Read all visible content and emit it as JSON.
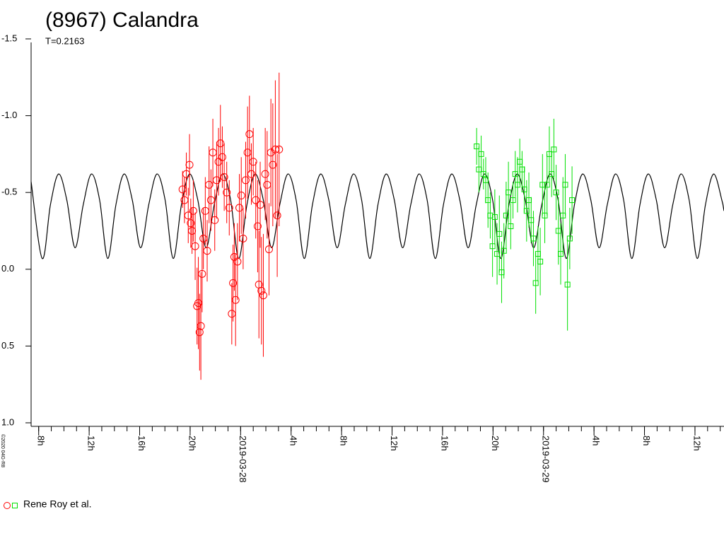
{
  "chart_data": {
    "type": "scatter",
    "title": "(8967) Calandra",
    "subtitle": "T=0.2163",
    "credit": "©2020 04G-R8",
    "legend": "Rene Roy et al.",
    "xlim": [
      7.4,
      62.3
    ],
    "ylim": [
      1.0,
      -1.5
    ],
    "yticks": [
      {
        "value": 1.0,
        "label": "1.0"
      },
      0.5,
      {
        "value": 0.0,
        "label": "0.0"
      },
      -0.5,
      {
        "value": -1.0,
        "label": "-1.0"
      },
      -1.5
    ],
    "xticks": [
      {
        "value": 8,
        "label": "8h"
      },
      {
        "value": 12,
        "label": "12h"
      },
      {
        "value": 16,
        "label": "16h"
      },
      {
        "value": 20,
        "label": "20h"
      },
      {
        "value": 24,
        "label": "2019-03-28"
      },
      {
        "value": 28,
        "label": "4h"
      },
      {
        "value": 32,
        "label": "8h"
      },
      {
        "value": 36,
        "label": "12h"
      },
      {
        "value": 40,
        "label": "16h"
      },
      {
        "value": 44,
        "label": "20h"
      },
      {
        "value": 48,
        "label": "2019-03-29"
      },
      {
        "value": 52,
        "label": "4h"
      },
      {
        "value": 56,
        "label": "8h"
      },
      {
        "value": 60,
        "label": "12h"
      }
    ],
    "xminor_ticks": [
      8,
      9,
      10,
      11,
      12,
      13,
      14,
      15,
      16,
      17,
      18,
      19,
      20,
      21,
      22,
      23,
      24,
      25,
      26,
      27,
      28,
      29,
      30,
      31,
      32,
      33,
      34,
      35,
      36,
      37,
      38,
      39,
      40,
      41,
      42,
      43,
      44,
      45,
      46,
      47,
      48,
      49,
      50,
      51,
      52,
      53,
      54,
      55,
      56,
      57,
      58,
      59,
      60,
      61,
      62
    ],
    "model": {
      "color": "#000000",
      "x": [
        7.4,
        8.28,
        8.93,
        9.58,
        10.23,
        10.88,
        11.53,
        12.18,
        12.83,
        13.47,
        14.12,
        14.77,
        15.42,
        16.07,
        16.72,
        17.37,
        18.02,
        18.66,
        19.31,
        19.96,
        20.61,
        21.26,
        21.91,
        22.56,
        23.21,
        23.85,
        24.5,
        25.15,
        25.8,
        26.45,
        27.1,
        27.75,
        28.4,
        29.04,
        29.69,
        30.34,
        30.99,
        31.64,
        32.29,
        32.94,
        33.59,
        34.23,
        34.88,
        35.53,
        36.18,
        36.83,
        37.48,
        38.13,
        38.78,
        39.42,
        40.07,
        40.72,
        41.37,
        42.02,
        42.67,
        43.32,
        43.97,
        44.61,
        45.26,
        45.91,
        46.56,
        47.21,
        47.86,
        48.51,
        49.16,
        49.8,
        50.45,
        51.1,
        51.75,
        52.4,
        53.05,
        53.7,
        54.35,
        54.99,
        55.64,
        56.29,
        56.94,
        57.59,
        58.24,
        58.89,
        59.54,
        60.18,
        60.83,
        61.48,
        62.13,
        62.3
      ],
      "values": [
        -0.57,
        -0.07,
        -0.42,
        -0.62,
        -0.45,
        -0.14,
        -0.42,
        -0.62,
        -0.45,
        -0.07,
        -0.42,
        -0.62,
        -0.45,
        -0.14,
        -0.42,
        -0.62,
        -0.45,
        -0.07,
        -0.42,
        -0.62,
        -0.45,
        -0.14,
        -0.42,
        -0.62,
        -0.45,
        -0.07,
        -0.42,
        -0.62,
        -0.45,
        -0.14,
        -0.42,
        -0.62,
        -0.45,
        -0.07,
        -0.42,
        -0.62,
        -0.45,
        -0.14,
        -0.42,
        -0.62,
        -0.45,
        -0.07,
        -0.42,
        -0.62,
        -0.45,
        -0.14,
        -0.42,
        -0.62,
        -0.45,
        -0.07,
        -0.42,
        -0.62,
        -0.45,
        -0.14,
        -0.42,
        -0.62,
        -0.45,
        -0.07,
        -0.42,
        -0.62,
        -0.45,
        -0.14,
        -0.42,
        -0.62,
        -0.45,
        -0.07,
        -0.42,
        -0.62,
        -0.45,
        -0.14,
        -0.42,
        -0.62,
        -0.45,
        -0.07,
        -0.42,
        -0.62,
        -0.45,
        -0.14,
        -0.42,
        -0.62,
        -0.45,
        -0.07,
        -0.42,
        -0.62,
        -0.45,
        -0.38
      ]
    },
    "series": [
      {
        "color": "#ff0000",
        "marker": "circle",
        "x": [
          19.4,
          19.55,
          19.7,
          19.85,
          19.95,
          20.05,
          20.15,
          20.25,
          20.4,
          20.55,
          20.65,
          20.75,
          20.85,
          20.95,
          21.05,
          21.2,
          21.35,
          21.5,
          21.65,
          21.8,
          21.95,
          22.1,
          22.25,
          22.4,
          22.55,
          22.7,
          22.9,
          23.1,
          23.3,
          23.4,
          23.5,
          23.6,
          23.75,
          23.9,
          24.05,
          24.2,
          24.4,
          24.55,
          24.7,
          24.85,
          25.0,
          25.2,
          25.35,
          25.45,
          25.55,
          25.65,
          25.8,
          25.95,
          26.1,
          26.25,
          26.4,
          26.55,
          26.75,
          26.9,
          27.05
        ],
        "values": [
          -0.52,
          -0.45,
          -0.62,
          -0.35,
          -0.68,
          -0.3,
          -0.25,
          -0.38,
          -0.15,
          0.24,
          0.22,
          0.41,
          0.37,
          0.03,
          -0.2,
          -0.38,
          -0.12,
          -0.55,
          -0.45,
          -0.76,
          -0.32,
          -0.58,
          -0.7,
          -0.82,
          -0.73,
          -0.6,
          -0.5,
          -0.4,
          0.29,
          0.09,
          -0.08,
          0.2,
          -0.05,
          -0.4,
          -0.48,
          -0.2,
          -0.58,
          -0.76,
          -0.88,
          -0.62,
          -0.7,
          -0.45,
          -0.28,
          0.1,
          -0.42,
          0.14,
          0.17,
          -0.62,
          -0.55,
          -0.13,
          -0.76,
          -0.68,
          -0.78,
          -0.35,
          -0.78
        ],
        "errors": [
          0.12,
          0.15,
          0.14,
          0.18,
          0.2,
          0.16,
          0.15,
          0.2,
          0.22,
          0.25,
          0.3,
          0.25,
          0.35,
          0.25,
          0.2,
          0.22,
          0.2,
          0.25,
          0.2,
          0.22,
          0.2,
          0.25,
          0.22,
          0.25,
          0.2,
          0.22,
          0.2,
          0.18,
          0.2,
          0.25,
          0.22,
          0.3,
          0.25,
          0.22,
          0.25,
          0.2,
          0.25,
          0.3,
          0.25,
          0.2,
          0.22,
          0.25,
          0.3,
          0.35,
          0.28,
          0.35,
          0.4,
          0.3,
          0.35,
          0.3,
          0.35,
          0.4,
          0.45,
          0.4,
          0.5
        ]
      },
      {
        "color": "#00e000",
        "marker": "square",
        "x": [
          42.7,
          42.88,
          43.06,
          43.24,
          43.42,
          43.6,
          43.78,
          43.96,
          44.14,
          44.32,
          44.5,
          44.68,
          44.86,
          45.04,
          45.22,
          45.4,
          45.58,
          45.76,
          45.94,
          46.12,
          46.3,
          46.48,
          46.66,
          46.84,
          47.02,
          47.2,
          47.38,
          47.56,
          47.74,
          47.92,
          48.1,
          48.28,
          48.46,
          48.64,
          48.82,
          49.0,
          49.18,
          49.36,
          49.54,
          49.72,
          49.9,
          50.08,
          50.26
        ],
        "values": [
          -0.8,
          -0.65,
          -0.75,
          -0.62,
          -0.58,
          -0.45,
          -0.35,
          -0.15,
          -0.34,
          -0.1,
          -0.23,
          0.02,
          -0.12,
          -0.35,
          -0.5,
          -0.28,
          -0.45,
          -0.62,
          -0.55,
          -0.7,
          -0.65,
          -0.52,
          -0.38,
          -0.45,
          -0.32,
          -0.2,
          0.09,
          -0.1,
          -0.05,
          -0.55,
          -0.35,
          -0.55,
          -0.75,
          -0.62,
          -0.78,
          -0.5,
          -0.25,
          -0.1,
          -0.35,
          -0.55,
          0.1,
          -0.2,
          -0.45
        ],
        "errors": [
          0.12,
          0.15,
          0.12,
          0.1,
          0.15,
          0.18,
          0.15,
          0.2,
          0.18,
          0.2,
          0.25,
          0.2,
          0.18,
          0.22,
          0.2,
          0.15,
          0.12,
          0.15,
          0.18,
          0.15,
          0.12,
          0.15,
          0.2,
          0.18,
          0.15,
          0.18,
          0.2,
          0.18,
          0.22,
          0.2,
          0.18,
          0.2,
          0.18,
          0.15,
          0.2,
          0.18,
          0.22,
          0.2,
          0.25,
          0.2,
          0.3,
          0.2,
          0.22
        ]
      }
    ]
  }
}
